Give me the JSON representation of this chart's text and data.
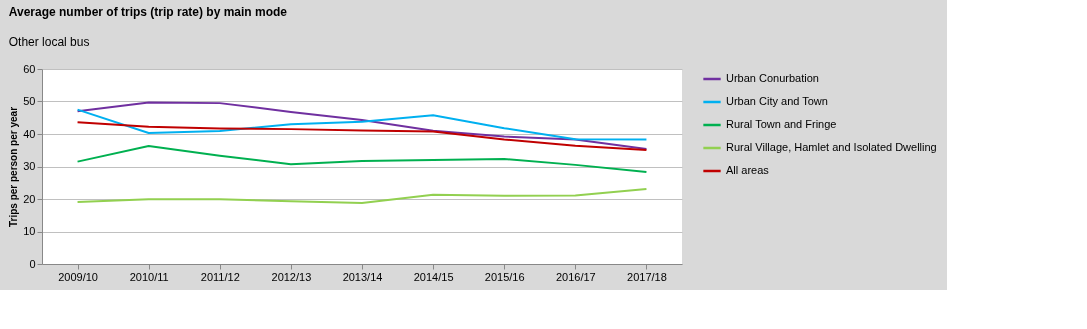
{
  "chart_data": {
    "type": "line",
    "title": "Average number of trips (trip rate) by main mode",
    "subtitle": "Other local bus",
    "ylabel": "Trips per person per year",
    "categories": [
      "2009/10",
      "2010/11",
      "2011/12",
      "2012/13",
      "2013/14",
      "2014/15",
      "2015/16",
      "2016/17",
      "2017/18"
    ],
    "series": [
      {
        "name": "Urban Conurbation",
        "color": "#7030a0",
        "values": [
          47,
          49.7,
          49.5,
          46.8,
          44.3,
          41,
          39.2,
          38.3,
          35.4
        ]
      },
      {
        "name": "Urban City and Town",
        "color": "#00b0f0",
        "values": [
          47.5,
          40.3,
          40.9,
          43,
          43.8,
          45.8,
          41.8,
          38.4,
          38.3
        ]
      },
      {
        "name": "Rural Town and Fringe",
        "color": "#00b050",
        "values": [
          31.5,
          36.3,
          33.3,
          30.7,
          31.7,
          32,
          32.3,
          30.5,
          28.3
        ]
      },
      {
        "name": "Rural Village, Hamlet and Isolated Dwelling",
        "color": "#92d050",
        "values": [
          19.1,
          19.9,
          19.9,
          19.3,
          18.8,
          21.3,
          21,
          21.1,
          23.1
        ]
      },
      {
        "name": "All areas",
        "color": "#c00000",
        "values": [
          43.6,
          42.2,
          41.7,
          41.5,
          41.1,
          40.8,
          38.3,
          36.4,
          35.1
        ]
      }
    ],
    "ylim": [
      0,
      60
    ],
    "yticks": [
      0,
      10,
      20,
      30,
      40,
      50,
      60
    ],
    "grid": "y",
    "legend": "right",
    "marker": "none",
    "line_style": "solid"
  }
}
